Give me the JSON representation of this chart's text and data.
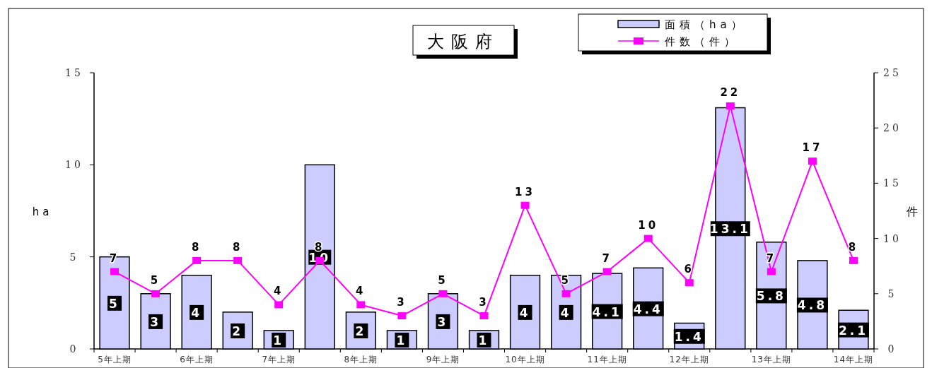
{
  "chart_data": {
    "type": "bar",
    "title": "大阪府",
    "ylabel": "ha",
    "y2label": "件",
    "categories": [
      "5年上期",
      null,
      "6年上期",
      null,
      "7年上期",
      null,
      "8年上期",
      null,
      "9年上期",
      null,
      "10年上期",
      null,
      "11年上期",
      null,
      "12年上期",
      null,
      "13年上期",
      null,
      "14年上期"
    ],
    "series": [
      {
        "name": "面積（ha）",
        "color": "#ccccff",
        "values": [
          5,
          3,
          4,
          2,
          1,
          10,
          2,
          1,
          3,
          1,
          4,
          4,
          4.1,
          4.4,
          1.4,
          13.1,
          5.8,
          4.8,
          2.1
        ]
      },
      {
        "name": "件数（件）",
        "type": "line",
        "color": "#ff00ff",
        "axis": "y2",
        "values": [
          7,
          5,
          8,
          8,
          4,
          8,
          4,
          3,
          5,
          3,
          13,
          5,
          7,
          10,
          6,
          22,
          7,
          17,
          8
        ]
      }
    ],
    "ylim": [
      0,
      15
    ],
    "yticks": [
      0,
      5,
      10,
      15
    ],
    "y2lim": [
      0,
      25
    ],
    "y2ticks": [
      0,
      5,
      10,
      15,
      20,
      25
    ],
    "data_labels": true,
    "marker": "square",
    "legend": "top",
    "grid": false
  }
}
